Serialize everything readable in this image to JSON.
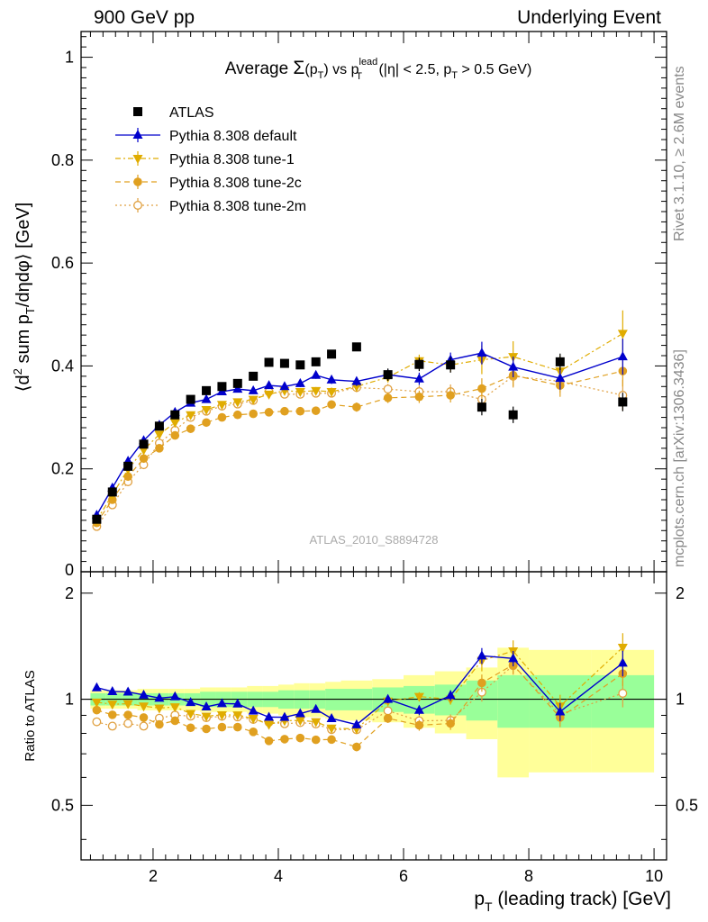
{
  "header": {
    "left": "900 GeV pp",
    "right": "Underlying Event"
  },
  "side_labels": {
    "rivet": "Rivet 3.1.10, ≥ 2.6M events",
    "mcplots": "mcplots.cern.ch [arXiv:1306.3436]"
  },
  "chart_data": {
    "type": "scatter",
    "title": "Average Σ(pT) vs pT lead (|η| < 2.5, pT > 0.5 GeV)",
    "title_parts": {
      "lead": "Average ",
      "sigma": "Σ",
      "paren_open": "(p",
      "t_sub": "T",
      "paren_close": ")",
      "vs": " vs p",
      "lead_sup": "lead",
      "lead_sub": "T",
      "cuts_a": " (|η| < 2.5, p",
      "cuts_sub": "T",
      "cuts_b": " > 0.5 GeV)"
    },
    "analysis_label": "ATLAS_2010_S8894728",
    "xlabel_parts": {
      "p": "p",
      "sub": "T",
      "rest": " (leading track) [GeV]"
    },
    "ylabel_parts": {
      "a": "⟨d",
      "sup": "2",
      "b": " sum p",
      "sub": "T",
      "c": "/dηdφ⟩ [GeV]"
    },
    "ratio_ylabel": "Ratio to ATLAS",
    "xlim": [
      0.85,
      10.2
    ],
    "ylim": [
      0,
      1.05
    ],
    "ratio_ylim": [
      0.35,
      2.3
    ],
    "x_ticks": [
      "2",
      "4",
      "6",
      "8",
      "10"
    ],
    "y_ticks": [
      "0.2",
      "0.4",
      "0.6",
      "0.8",
      "1"
    ],
    "y_zero_label": "0",
    "ratio_ticks": [
      "0.5",
      "1",
      "2"
    ],
    "x": [
      1.1,
      1.35,
      1.6,
      1.85,
      2.1,
      2.35,
      2.6,
      2.85,
      3.1,
      3.35,
      3.6,
      3.85,
      4.1,
      4.35,
      4.6,
      4.85,
      5.25,
      5.75,
      6.25,
      6.75,
      7.25,
      7.75,
      8.5,
      9.5
    ],
    "series": [
      {
        "name": "ATLAS",
        "color": "#000000",
        "marker": "square",
        "line": "none",
        "values": [
          0.102,
          0.155,
          0.205,
          0.248,
          0.283,
          0.305,
          0.335,
          0.352,
          0.36,
          0.366,
          0.38,
          0.407,
          0.405,
          0.402,
          0.408,
          0.423,
          0.437,
          0.383,
          0.403,
          0.402,
          0.32,
          0.305,
          0.408,
          0.33
        ],
        "errors": [
          0.003,
          0.003,
          0.003,
          0.003,
          0.003,
          0.003,
          0.003,
          0.003,
          0.003,
          0.003,
          0.003,
          0.003,
          0.004,
          0.004,
          0.004,
          0.005,
          0.006,
          0.012,
          0.013,
          0.015,
          0.016,
          0.016,
          0.016,
          0.018
        ]
      },
      {
        "name": "Pythia 8.308 default",
        "color": "#0000cc",
        "marker": "triangle-up",
        "line": "solid",
        "values": [
          0.11,
          0.163,
          0.215,
          0.255,
          0.285,
          0.31,
          0.328,
          0.335,
          0.35,
          0.355,
          0.352,
          0.362,
          0.36,
          0.366,
          0.382,
          0.373,
          0.37,
          0.383,
          0.375,
          0.412,
          0.425,
          0.398,
          0.376,
          0.418
        ],
        "errors": [
          0.002,
          0.002,
          0.002,
          0.002,
          0.003,
          0.003,
          0.003,
          0.004,
          0.004,
          0.005,
          0.005,
          0.006,
          0.006,
          0.007,
          0.007,
          0.008,
          0.009,
          0.01,
          0.012,
          0.014,
          0.022,
          0.02,
          0.022,
          0.035
        ]
      },
      {
        "name": "Pythia 8.308 tune-1",
        "color": "#e0ac00",
        "marker": "triangle-down",
        "line": "dashdot",
        "values": [
          0.1,
          0.15,
          0.199,
          0.237,
          0.267,
          0.29,
          0.305,
          0.315,
          0.325,
          0.33,
          0.335,
          0.345,
          0.352,
          0.35,
          0.352,
          0.35,
          0.36,
          0.378,
          0.41,
          0.402,
          0.412,
          0.418,
          0.39,
          0.463
        ],
        "errors": [
          0.002,
          0.002,
          0.002,
          0.002,
          0.003,
          0.003,
          0.003,
          0.004,
          0.004,
          0.005,
          0.005,
          0.006,
          0.006,
          0.007,
          0.007,
          0.008,
          0.009,
          0.01,
          0.012,
          0.014,
          0.028,
          0.03,
          0.03,
          0.045
        ]
      },
      {
        "name": "Pythia 8.308 tune-2c",
        "color": "#e0a020",
        "marker": "circle",
        "line": "dashed",
        "values": [
          0.095,
          0.14,
          0.185,
          0.22,
          0.24,
          0.265,
          0.278,
          0.29,
          0.3,
          0.305,
          0.307,
          0.31,
          0.312,
          0.312,
          0.313,
          0.325,
          0.32,
          0.338,
          0.34,
          0.343,
          0.356,
          0.382,
          0.362,
          0.39
        ],
        "errors": [
          0.002,
          0.002,
          0.002,
          0.002,
          0.003,
          0.003,
          0.003,
          0.004,
          0.004,
          0.005,
          0.005,
          0.006,
          0.006,
          0.007,
          0.007,
          0.008,
          0.009,
          0.01,
          0.012,
          0.014,
          0.02,
          0.022,
          0.022,
          0.03
        ]
      },
      {
        "name": "Pythia 8.308 tune-2m",
        "color": "#e0a040",
        "marker": "circle-open",
        "line": "dotted",
        "values": [
          0.088,
          0.13,
          0.175,
          0.208,
          0.25,
          0.275,
          0.3,
          0.312,
          0.322,
          0.326,
          0.333,
          0.35,
          0.345,
          0.345,
          0.347,
          0.347,
          0.358,
          0.355,
          0.35,
          0.35,
          0.335,
          0.38,
          0.37,
          0.343
        ],
        "errors": [
          0.002,
          0.002,
          0.002,
          0.002,
          0.003,
          0.003,
          0.003,
          0.004,
          0.004,
          0.005,
          0.005,
          0.006,
          0.006,
          0.007,
          0.007,
          0.008,
          0.009,
          0.01,
          0.012,
          0.014,
          0.02,
          0.022,
          0.022,
          0.03
        ]
      }
    ],
    "ratio_bands": {
      "edges": [
        1.0,
        1.25,
        1.5,
        1.75,
        2.0,
        2.25,
        2.5,
        2.75,
        3.0,
        3.25,
        3.5,
        3.75,
        4.0,
        4.25,
        4.5,
        4.75,
        5.0,
        5.5,
        6.0,
        6.5,
        7.0,
        7.5,
        8.0,
        9.0,
        10.0
      ],
      "stat_half_width": [
        0.04,
        0.04,
        0.04,
        0.04,
        0.04,
        0.04,
        0.04,
        0.05,
        0.05,
        0.05,
        0.05,
        0.05,
        0.06,
        0.06,
        0.06,
        0.07,
        0.07,
        0.08,
        0.09,
        0.1,
        0.13,
        0.17,
        0.17,
        0.17
      ],
      "total_half_width": [
        0.06,
        0.06,
        0.06,
        0.07,
        0.07,
        0.07,
        0.07,
        0.08,
        0.08,
        0.08,
        0.09,
        0.09,
        0.1,
        0.11,
        0.11,
        0.12,
        0.13,
        0.14,
        0.17,
        0.2,
        0.23,
        0.4,
        0.38,
        0.38
      ],
      "stat_color": "#99ff99",
      "total_color": "#ffff99"
    }
  }
}
